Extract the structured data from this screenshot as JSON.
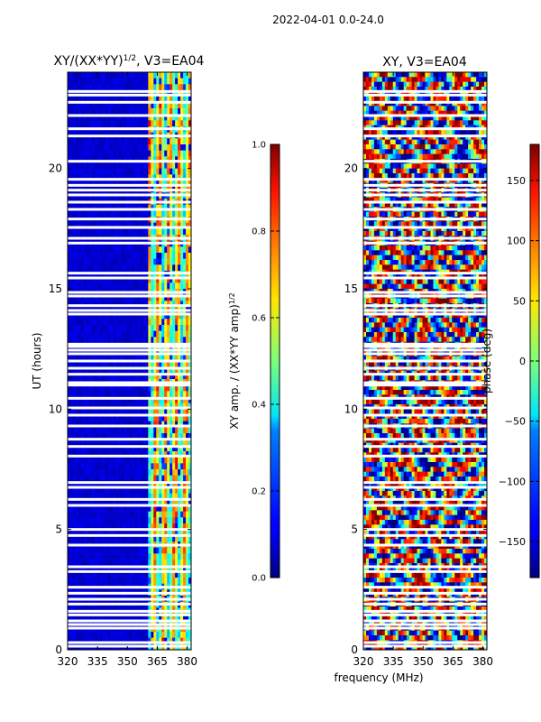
{
  "figure": {
    "suptitle": "2022-04-01 0.0-24.0",
    "shared_xlabel": "frequency (MHz)"
  },
  "chart_data": [
    {
      "type": "heatmap",
      "title_main": "XY/(XX*YY)",
      "title_exp": "1/2",
      "title_tail": ", V3=EA04",
      "xlabel": "",
      "ylabel": "UT (hours)",
      "xlim": [
        320,
        382
      ],
      "ylim": [
        0,
        24
      ],
      "xticks": [
        "320",
        "335",
        "350",
        "365",
        "380"
      ],
      "yticks": [
        "0",
        "5",
        "10",
        "15",
        "20"
      ],
      "colorbar": {
        "label_main": "XY amp. / (XX*YY amp)",
        "label_exp": "1/2",
        "range": [
          0.0,
          1.0
        ],
        "ticks": [
          "0.0",
          "0.2",
          "0.4",
          "0.6",
          "0.8",
          "1.0"
        ],
        "colormap": "jet"
      },
      "description_bands": {
        "low_freq_value": 0.05,
        "high_freq_start": 360,
        "high_freq_value_range": [
          0.3,
          0.9
        ]
      },
      "flagged_hours": [
        0.15,
        0.3,
        0.9,
        1.05,
        1.2,
        1.45,
        1.6,
        1.9,
        2.1,
        2.35,
        2.6,
        3.25,
        3.45,
        4.35,
        4.75,
        5.0,
        6.0,
        6.25,
        6.75,
        6.95,
        8.05,
        8.45,
        8.75,
        9.3,
        9.75,
        10.05,
        10.45,
        11.0,
        11.1,
        11.45,
        11.7,
        12.0,
        12.3,
        12.45,
        12.6,
        12.7,
        13.95,
        14.1,
        14.3,
        14.7,
        14.85,
        15.45,
        15.65,
        16.9,
        17.1,
        17.55,
        17.9,
        18.3,
        18.6,
        18.9,
        19.1,
        19.3,
        19.55,
        20.3,
        21.35,
        21.65,
        22.2,
        22.75,
        23.05,
        23.2
      ]
    },
    {
      "type": "heatmap",
      "title_main": "XY, V3=EA04",
      "xlabel": "frequency (MHz)",
      "ylabel": "",
      "xlim": [
        320,
        382
      ],
      "ylim": [
        0,
        24
      ],
      "xticks": [
        "320",
        "335",
        "350",
        "365",
        "380"
      ],
      "yticks": [
        "0",
        "5",
        "10",
        "15",
        "20"
      ],
      "colorbar": {
        "label": "phase (deg)",
        "range": [
          -180,
          180
        ],
        "ticks": [
          "−150",
          "−100",
          "−50",
          "0",
          "50",
          "100",
          "150"
        ],
        "tick_values": [
          -150,
          -100,
          -50,
          0,
          50,
          100,
          150
        ],
        "colormap": "jet"
      },
      "flagged_hours": [
        0.15,
        0.3,
        0.9,
        1.05,
        1.2,
        1.45,
        1.6,
        1.9,
        2.1,
        2.35,
        2.6,
        3.25,
        3.45,
        4.35,
        4.75,
        5.0,
        6.0,
        6.25,
        6.75,
        6.95,
        8.05,
        8.45,
        8.75,
        9.3,
        9.75,
        10.05,
        10.45,
        11.0,
        11.1,
        11.45,
        11.7,
        12.0,
        12.3,
        12.45,
        12.6,
        12.7,
        13.95,
        14.1,
        14.3,
        14.7,
        14.85,
        15.45,
        15.65,
        16.9,
        17.1,
        17.55,
        17.9,
        18.3,
        18.6,
        18.9,
        19.1,
        19.3,
        19.55,
        20.3,
        21.35,
        21.65,
        22.2,
        22.75,
        23.05,
        23.2
      ]
    }
  ]
}
